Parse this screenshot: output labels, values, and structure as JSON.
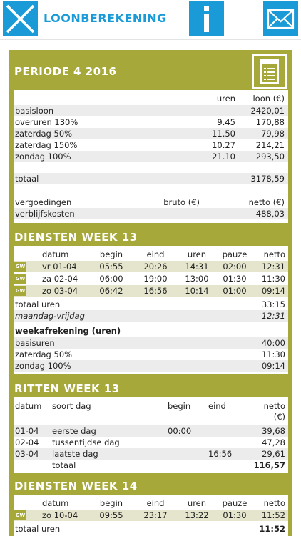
{
  "app": {
    "title": "LOONBEREKENING"
  },
  "period": {
    "title": "PERIODE 4 2016",
    "col_uren": "uren",
    "col_loon": "loon (€)",
    "rows": [
      {
        "label": "basisloon",
        "uren": "",
        "loon": "2420,01"
      },
      {
        "label": "overuren 130%",
        "uren": "9.45",
        "loon": "170,88"
      },
      {
        "label": "zaterdag 50%",
        "uren": "11.50",
        "loon": "79,98"
      },
      {
        "label": "zaterdag 150%",
        "uren": "10.27",
        "loon": "214,21"
      },
      {
        "label": "zondag 100%",
        "uren": "21.10",
        "loon": "293,50"
      }
    ],
    "total_label": "totaal",
    "total_value": "3178,59",
    "verg_label": "vergoedingen",
    "verg_bruto": "bruto (€)",
    "verg_netto": "netto (€)",
    "verblijf_label": "verblijfskosten",
    "verblijf_value": "488,03"
  },
  "week13": {
    "title": "DIENSTEN WEEK 13",
    "headers": [
      "datum",
      "begin",
      "eind",
      "uren",
      "pauze",
      "netto"
    ],
    "rows": [
      {
        "badge": "GW",
        "datum": "vr 01-04",
        "begin": "05:55",
        "eind": "20:26",
        "uren": "14:31",
        "pauze": "02:00",
        "netto": "12:31"
      },
      {
        "badge": "GW",
        "datum": "za 02-04",
        "begin": "06:00",
        "eind": "19:00",
        "uren": "13:00",
        "pauze": "01:30",
        "netto": "11:30"
      },
      {
        "badge": "GW",
        "datum": "zo 03-04",
        "begin": "06:42",
        "eind": "16:56",
        "uren": "10:14",
        "pauze": "01:00",
        "netto": "09:14"
      }
    ],
    "totaal_label": "totaal uren",
    "totaal_value": "33:15",
    "mv_label": "maandag-vrijdag",
    "mv_value": "12:31",
    "weekaf_title": "weekafrekening (uren)",
    "weekaf_rows": [
      {
        "label": "basisuren",
        "value": "40:00"
      },
      {
        "label": "zaterdag 50%",
        "value": "11:30"
      },
      {
        "label": "zondag 100%",
        "value": "09:14"
      }
    ]
  },
  "ritten": {
    "title": "RITTEN WEEK 13",
    "headers": {
      "datum": "datum",
      "soort": "soort dag",
      "begin": "begin",
      "eind": "eind",
      "netto": "netto",
      "unit": "(€)"
    },
    "rows": [
      {
        "datum": "01-04",
        "soort": "eerste dag",
        "begin": "00:00",
        "eind": "",
        "netto": "39,68"
      },
      {
        "datum": "02-04",
        "soort": "tussentijdse dag",
        "begin": "",
        "eind": "",
        "netto": "47,28"
      },
      {
        "datum": "03-04",
        "soort": "laatste dag",
        "begin": "",
        "eind": "16:56",
        "netto": "29,61"
      }
    ],
    "total_label": "totaal",
    "total_value": "116,57"
  },
  "week14": {
    "title": "DIENSTEN WEEK 14",
    "headers": [
      "datum",
      "begin",
      "eind",
      "uren",
      "pauze",
      "netto"
    ],
    "rows": [
      {
        "badge": "GW",
        "datum": "zo 10-04",
        "begin": "09:55",
        "eind": "23:17",
        "uren": "13:22",
        "pauze": "01:30",
        "netto": "11:52"
      }
    ],
    "totaal_label": "totaal uren",
    "totaal_value": "11:52"
  },
  "colors": {
    "blue": "#1a9bd7",
    "olive": "#a6a83a"
  }
}
